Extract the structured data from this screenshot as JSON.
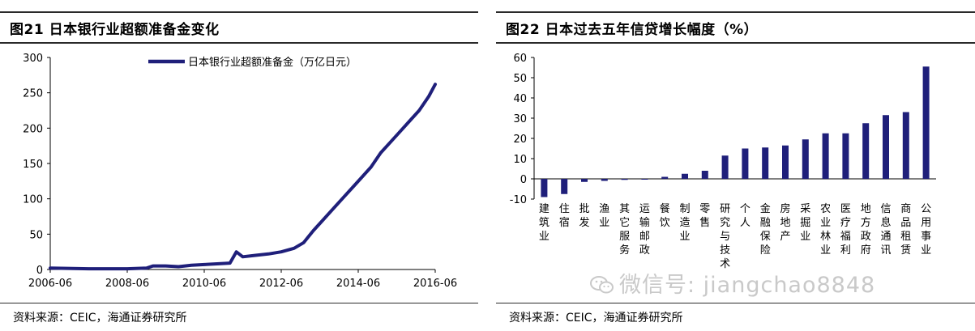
{
  "left_panel": {
    "title": "图21 日本银行业超额准备金变化",
    "source": "资料来源：CEIC，海通证券研究所"
  },
  "right_panel": {
    "title": "图22 日本过去五年信贷增长幅度（%）",
    "source": "资料来源：CEIC，海通证券研究所"
  },
  "watermark": "微信号: jiangchao8848",
  "chart_data": [
    {
      "type": "line",
      "title": "",
      "xlabel": "",
      "ylabel": "",
      "x_ticks": [
        "2006-06",
        "2008-06",
        "2010-06",
        "2012-06",
        "2014-06",
        "2016-06"
      ],
      "y_ticks": [
        "0",
        "50",
        "100",
        "150",
        "200",
        "250",
        "300"
      ],
      "ylim": [
        0,
        300
      ],
      "legend_position": "top",
      "line_color": "#1f1f7a",
      "series": [
        {
          "name": "日本银行业超额准备金（万亿日元）",
          "points": [
            [
              "2006-06",
              2
            ],
            [
              "2007-06",
              1
            ],
            [
              "2008-06",
              1
            ],
            [
              "2008-12",
              2
            ],
            [
              "2009-02",
              5
            ],
            [
              "2009-06",
              5
            ],
            [
              "2009-10",
              4
            ],
            [
              "2010-02",
              6
            ],
            [
              "2010-06",
              7
            ],
            [
              "2010-10",
              8
            ],
            [
              "2011-02",
              9
            ],
            [
              "2011-04",
              25
            ],
            [
              "2011-06",
              18
            ],
            [
              "2011-10",
              20
            ],
            [
              "2012-02",
              22
            ],
            [
              "2012-06",
              25
            ],
            [
              "2012-10",
              30
            ],
            [
              "2013-01",
              38
            ],
            [
              "2013-04",
              55
            ],
            [
              "2013-07",
              70
            ],
            [
              "2013-10",
              85
            ],
            [
              "2014-01",
              100
            ],
            [
              "2014-04",
              115
            ],
            [
              "2014-07",
              130
            ],
            [
              "2014-10",
              145
            ],
            [
              "2015-01",
              165
            ],
            [
              "2015-04",
              180
            ],
            [
              "2015-07",
              195
            ],
            [
              "2015-10",
              210
            ],
            [
              "2016-01",
              225
            ],
            [
              "2016-04",
              245
            ],
            [
              "2016-06",
              262
            ]
          ]
        }
      ]
    },
    {
      "type": "bar",
      "title": "",
      "xlabel": "",
      "ylabel": "",
      "ylim": [
        -10,
        60
      ],
      "y_ticks": [
        "-10",
        "0",
        "10",
        "20",
        "30",
        "40",
        "50",
        "60"
      ],
      "bar_color": "#1f1f7a",
      "categories": [
        "建筑业",
        "住宿",
        "批发",
        "渔业",
        "其它服务",
        "运输邮政",
        "餐饮",
        "制造业",
        "零售",
        "研究与技术",
        "个人",
        "金融保险",
        "房地产",
        "采掘业",
        "农业林业",
        "医疗福利",
        "地方政府",
        "信息通讯",
        "商品租赁",
        "公用事业"
      ],
      "values": [
        -9,
        -7.5,
        -1.5,
        -1,
        -0.5,
        -0.3,
        1,
        2.5,
        4,
        11.5,
        15,
        15.5,
        16.5,
        19.5,
        22.5,
        22.5,
        27.5,
        31.5,
        33,
        55.5
      ]
    }
  ]
}
